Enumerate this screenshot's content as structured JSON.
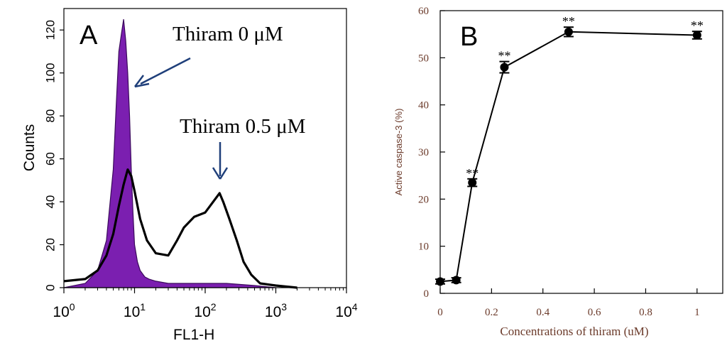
{
  "chart_data": [
    {
      "type": "histogram",
      "panel_label": "A",
      "xlabel": "FL1-H",
      "ylabel": "Counts",
      "x_scale": "log",
      "xlim": [
        1,
        10000
      ],
      "ylim": [
        0,
        130
      ],
      "x_ticks": [
        {
          "base": "10",
          "exp": "0",
          "value": 1
        },
        {
          "base": "10",
          "exp": "1",
          "value": 10
        },
        {
          "base": "10",
          "exp": "2",
          "value": 100
        },
        {
          "base": "10",
          "exp": "3",
          "value": 1000
        },
        {
          "base": "10",
          "exp": "4",
          "value": 10000
        }
      ],
      "y_ticks": [
        "0",
        "20",
        "40",
        "60",
        "80",
        "100",
        "120"
      ],
      "annotations": [
        "Thiram 0 μM",
        "Thiram 0.5 μM"
      ],
      "series": [
        {
          "name": "Thiram 0 μM",
          "style": "filled",
          "color": "#7b1fb0",
          "x": [
            1,
            2,
            3,
            4,
            5,
            5.5,
            6,
            6.5,
            7,
            7.5,
            8,
            8.5,
            9,
            9.5,
            10,
            11,
            12,
            14,
            16,
            20,
            30,
            60,
            100,
            200,
            500,
            1000
          ],
          "y": [
            0,
            2,
            8,
            22,
            55,
            85,
            110,
            118,
            125,
            115,
            100,
            80,
            55,
            35,
            20,
            12,
            8,
            5,
            4,
            3,
            2,
            2,
            2,
            2,
            1,
            0
          ]
        },
        {
          "name": "Thiram 0.5 μM",
          "style": "line",
          "color": "#000000",
          "x": [
            1,
            2,
            3,
            4,
            5,
            6,
            7,
            8,
            9,
            10,
            12,
            15,
            20,
            30,
            40,
            50,
            70,
            100,
            130,
            160,
            180,
            220,
            280,
            350,
            450,
            600,
            1000,
            2000
          ],
          "y": [
            3,
            4,
            8,
            15,
            25,
            38,
            48,
            55,
            52,
            45,
            32,
            22,
            16,
            15,
            22,
            28,
            33,
            35,
            40,
            44,
            40,
            32,
            22,
            12,
            6,
            2,
            1,
            0
          ]
        }
      ]
    },
    {
      "type": "line",
      "panel_label": "B",
      "xlabel": "Concentrations of thiram (uM)",
      "ylabel": "Active caspase-3 (%)",
      "xlim": [
        0,
        1.1
      ],
      "ylim": [
        0,
        60
      ],
      "x_ticks": [
        "0",
        "0.2",
        "0.4",
        "0.6",
        "0.8",
        "1"
      ],
      "y_ticks": [
        "0",
        "10",
        "20",
        "30",
        "40",
        "50",
        "60"
      ],
      "series": [
        {
          "name": "Active caspase-3",
          "x": [
            0,
            0.0625,
            0.125,
            0.25,
            0.5,
            1
          ],
          "y": [
            2.5,
            2.8,
            23.5,
            48,
            55.5,
            54.8
          ],
          "error": [
            0.5,
            0.5,
            0.8,
            1.2,
            1.0,
            0.8
          ],
          "significance": [
            "",
            "",
            "**",
            "**",
            "**",
            "**"
          ]
        }
      ]
    }
  ]
}
